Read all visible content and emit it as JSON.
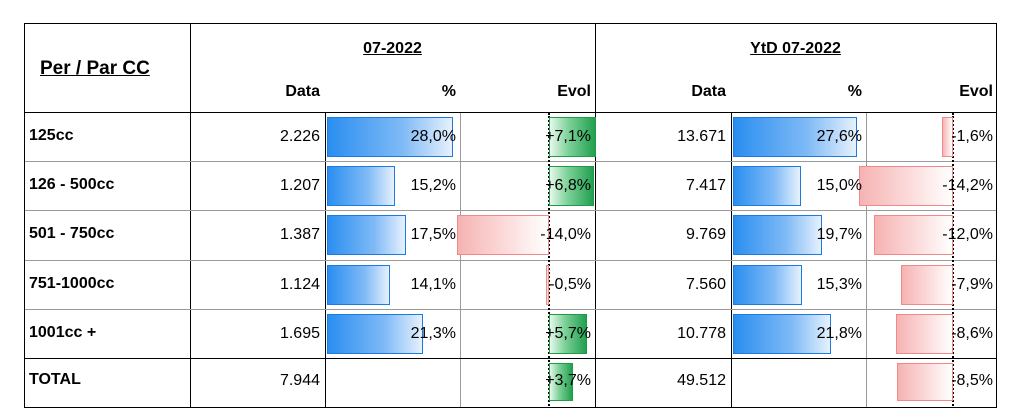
{
  "header": {
    "row_header": "Per / Par CC",
    "period_month": "07-2022",
    "period_ytd": "YtD 07-2022",
    "col_data": "Data",
    "col_pct": "%",
    "col_evol": "Evol"
  },
  "rows": [
    {
      "label": "125cc",
      "m_data": "2.226",
      "m_pct": "28,0%",
      "m_pct_val": 28.0,
      "m_evol": "+7,1%",
      "m_evol_val": 7.1,
      "y_data": "13.671",
      "y_pct": "27,6%",
      "y_pct_val": 27.6,
      "y_evol": "-1,6%",
      "y_evol_val": -1.6
    },
    {
      "label": "126 - 500cc",
      "m_data": "1.207",
      "m_pct": "15,2%",
      "m_pct_val": 15.2,
      "m_evol": "+6,8%",
      "m_evol_val": 6.8,
      "y_data": "7.417",
      "y_pct": "15,0%",
      "y_pct_val": 15.0,
      "y_evol": "-14,2%",
      "y_evol_val": -14.2
    },
    {
      "label": "501 - 750cc",
      "m_data": "1.387",
      "m_pct": "17,5%",
      "m_pct_val": 17.5,
      "m_evol": "-14,0%",
      "m_evol_val": -14.0,
      "y_data": "9.769",
      "y_pct": "19,7%",
      "y_pct_val": 19.7,
      "y_evol": "-12,0%",
      "y_evol_val": -12.0
    },
    {
      "label": "751-1000cc",
      "m_data": "1.124",
      "m_pct": "14,1%",
      "m_pct_val": 14.1,
      "m_evol": "-0,5%",
      "m_evol_val": -0.5,
      "y_data": "7.560",
      "y_pct": "15,3%",
      "y_pct_val": 15.3,
      "y_evol": "-7,9%",
      "y_evol_val": -7.9
    },
    {
      "label": "1001cc +",
      "m_data": "1.695",
      "m_pct": "21,3%",
      "m_pct_val": 21.3,
      "m_evol": "+5,7%",
      "m_evol_val": 5.7,
      "y_data": "10.778",
      "y_pct": "21,8%",
      "y_pct_val": 21.8,
      "y_evol": "-8,6%",
      "y_evol_val": -8.6
    }
  ],
  "total": {
    "label": "TOTAL",
    "m_data": "7.944",
    "m_evol": "+3,7%",
    "m_evol_val": 3.7,
    "y_data": "49.512",
    "y_evol": "-8,5%",
    "y_evol_val": -8.5
  },
  "colors": {
    "pct_bar": "#2a8ef0",
    "evol_positive": "#2aaa55",
    "evol_negative": "#f06a6a"
  }
}
